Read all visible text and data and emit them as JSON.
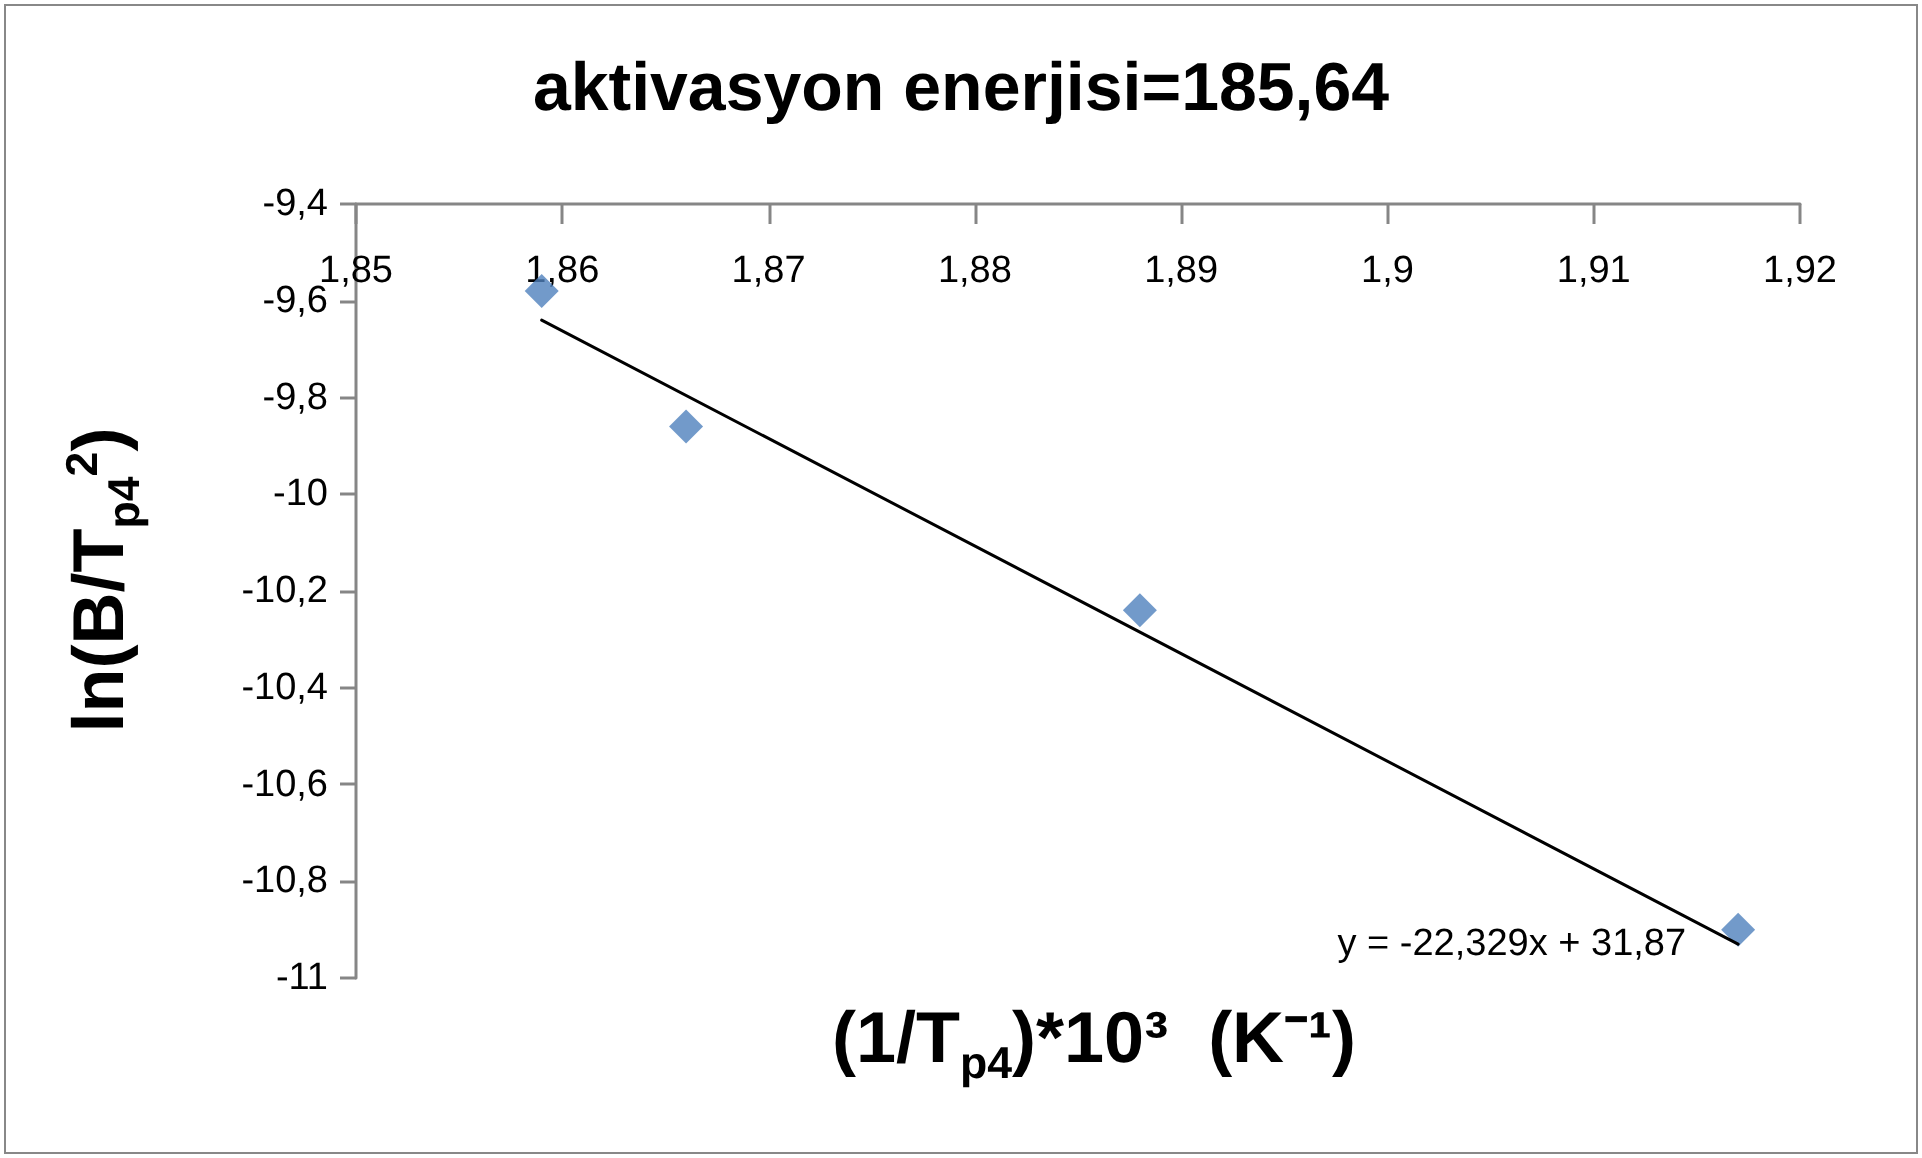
{
  "chart_data": {
    "type": "scatter",
    "title": "aktivasyon enerjisi=185,64",
    "xlabel": "(1/T$_{p4}$)*10³  (K⁻¹)",
    "ylabel": "ln(B/T$_{p4}$$^{2}$)",
    "annotations": [
      "y = -22,329x + 31,87"
    ],
    "xlim": [
      1.85,
      1.92
    ],
    "xticks": [
      {
        "value": 1.85,
        "label": "1,85"
      },
      {
        "value": 1.86,
        "label": "1,86"
      },
      {
        "value": 1.87,
        "label": "1,87"
      },
      {
        "value": 1.88,
        "label": "1,88"
      },
      {
        "value": 1.89,
        "label": "1,89"
      },
      {
        "value": 1.9,
        "label": "1,9"
      },
      {
        "value": 1.91,
        "label": "1,91"
      },
      {
        "value": 1.92,
        "label": "1,92"
      }
    ],
    "ylim": [
      -11,
      -9.4
    ],
    "yticks": [
      {
        "value": -9.4,
        "label": "-9,4"
      },
      {
        "value": -9.6,
        "label": "-9,6"
      },
      {
        "value": -9.8,
        "label": "-9,8"
      },
      -10,
      {
        "value": -10.2,
        "label": "-10,2"
      },
      {
        "value": -10.4,
        "label": "-10,4"
      },
      {
        "value": -10.6,
        "label": "-10,6"
      },
      {
        "value": -10.8,
        "label": "-10,8"
      },
      -11
    ],
    "marker": "diamond",
    "series": [
      {
        "type": "scatter",
        "color": "#4f81bd",
        "x": [
          1.859,
          1.866,
          1.888,
          1.917
        ],
        "values": [
          -9.58,
          -9.86,
          -10.24,
          -10.9
        ]
      },
      {
        "type": "line",
        "color": "#000000",
        "marker": "none",
        "x": [
          1.859,
          1.917
        ],
        "values": [
          -9.64,
          -10.93
        ]
      }
    ]
  }
}
